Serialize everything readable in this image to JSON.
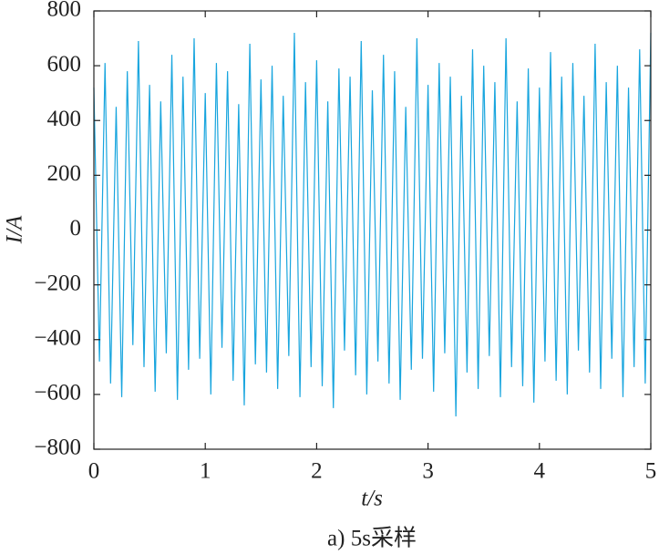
{
  "chart_data": {
    "type": "line",
    "xlabel": "t/s",
    "ylabel": "I/A",
    "caption": "a) 5s采样",
    "xlim": [
      0,
      5
    ],
    "xticks": [
      0,
      1,
      2,
      3,
      4,
      5
    ],
    "ylim": [
      -800,
      800
    ],
    "yticks": [
      {
        "value": -800,
        "label": "−800"
      },
      {
        "value": -600,
        "label": "−600"
      },
      {
        "value": -400,
        "label": "−400"
      },
      {
        "value": -200,
        "label": "−200"
      },
      0,
      200,
      400,
      600,
      800
    ],
    "x": [
      0,
      0.05,
      0.1,
      0.15,
      0.2,
      0.25,
      0.3,
      0.35,
      0.4,
      0.45,
      0.5,
      0.55,
      0.6,
      0.65,
      0.7,
      0.75,
      0.8,
      0.85,
      0.9,
      0.95,
      1,
      1.05,
      1.1,
      1.15,
      1.2,
      1.25,
      1.3,
      1.35,
      1.4,
      1.45,
      1.5,
      1.55,
      1.6,
      1.65,
      1.7,
      1.75,
      1.8,
      1.85,
      1.9,
      1.95,
      2,
      2.05,
      2.1,
      2.15,
      2.2,
      2.25,
      2.3,
      2.35,
      2.4,
      2.45,
      2.5,
      2.55,
      2.6,
      2.65,
      2.7,
      2.75,
      2.8,
      2.85,
      2.9,
      2.95,
      3,
      3.05,
      3.1,
      3.15,
      3.2,
      3.25,
      3.3,
      3.35,
      3.4,
      3.45,
      3.5,
      3.55,
      3.6,
      3.65,
      3.7,
      3.75,
      3.8,
      3.85,
      3.9,
      3.95,
      4,
      4.05,
      4.1,
      4.15,
      4.2,
      4.25,
      4.3,
      4.35,
      4.4,
      4.45,
      4.5,
      4.55,
      4.6,
      4.65,
      4.7,
      4.75,
      4.8,
      4.85,
      4.9,
      4.95,
      5
    ],
    "series": [
      {
        "color": "#18a5de",
        "values": [
          520,
          -480,
          610,
          -560,
          450,
          -610,
          580,
          -420,
          690,
          -500,
          530,
          -590,
          470,
          -450,
          640,
          -620,
          560,
          -510,
          700,
          -470,
          500,
          -600,
          610,
          -430,
          580,
          -550,
          460,
          -640,
          680,
          -490,
          550,
          -520,
          600,
          -580,
          490,
          -460,
          720,
          -610,
          540,
          -500,
          620,
          -570,
          470,
          -650,
          590,
          -440,
          560,
          -530,
          690,
          -600,
          510,
          -480,
          640,
          -560,
          580,
          -620,
          450,
          -510,
          700,
          -470,
          530,
          -590,
          610,
          -450,
          560,
          -680,
          490,
          -520,
          660,
          -580,
          600,
          -460,
          540,
          -610,
          700,
          -500,
          470,
          -570,
          590,
          -630,
          520,
          -480,
          650,
          -550,
          560,
          -600,
          610,
          -440,
          490,
          -520,
          680,
          -580,
          540,
          -470,
          600,
          -610,
          520,
          -500,
          660,
          -560,
          720
        ]
      }
    ]
  }
}
